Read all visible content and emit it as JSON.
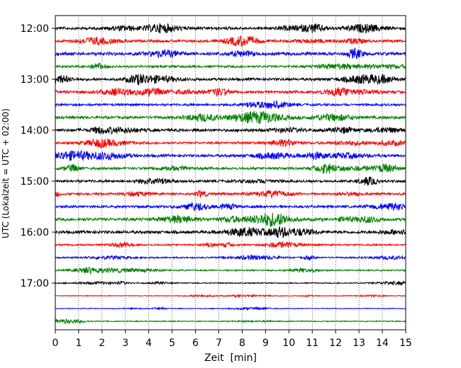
{
  "chart_data": {
    "type": "line",
    "xlabel": "Zeit  [min]",
    "ylabel": "UTC (Lokalzeit = UTC + 02:00)",
    "xlim": [
      0,
      15
    ],
    "x_ticks": [
      0,
      1,
      2,
      3,
      4,
      5,
      6,
      7,
      8,
      9,
      10,
      11,
      12,
      13,
      14,
      15
    ],
    "x_tick_labels": [
      "0",
      "1",
      "2",
      "3",
      "4",
      "5",
      "6",
      "7",
      "8",
      "9",
      "10",
      "11",
      "12",
      "13",
      "14",
      "15"
    ],
    "y_tick_labels": [
      "12:00",
      "13:00",
      "14:00",
      "15:00",
      "16:00",
      "17:00"
    ],
    "grid": "vertical-dotted",
    "trace_colors": [
      "#000000",
      "#ff0000",
      "#0000ff",
      "#008000"
    ],
    "traces": [
      {
        "start": "12:00",
        "color": "#000000",
        "amplitude": 0.55
      },
      {
        "start": "12:15",
        "color": "#ff0000",
        "amplitude": 0.5
      },
      {
        "start": "12:30",
        "color": "#0000ff",
        "amplitude": 0.65
      },
      {
        "start": "12:45",
        "color": "#008000",
        "amplitude": 0.45
      },
      {
        "start": "13:00",
        "color": "#000000",
        "amplitude": 0.55
      },
      {
        "start": "13:15",
        "color": "#ff0000",
        "amplitude": 0.5
      },
      {
        "start": "13:30",
        "color": "#0000ff",
        "amplitude": 0.45
      },
      {
        "start": "13:45",
        "color": "#008000",
        "amplitude": 0.55
      },
      {
        "start": "14:00",
        "color": "#000000",
        "amplitude": 0.6
      },
      {
        "start": "14:15",
        "color": "#ff0000",
        "amplitude": 0.45
      },
      {
        "start": "14:30",
        "color": "#0000ff",
        "amplitude": 0.55
      },
      {
        "start": "14:45",
        "color": "#008000",
        "amplitude": 0.5
      },
      {
        "start": "15:00",
        "color": "#000000",
        "amplitude": 0.5
      },
      {
        "start": "15:15",
        "color": "#ff0000",
        "amplitude": 0.45
      },
      {
        "start": "15:30",
        "color": "#0000ff",
        "amplitude": 0.5
      },
      {
        "start": "15:45",
        "color": "#008000",
        "amplitude": 0.6
      },
      {
        "start": "16:00",
        "color": "#000000",
        "amplitude": 0.6
      },
      {
        "start": "16:15",
        "color": "#ff0000",
        "amplitude": 0.35
      },
      {
        "start": "16:30",
        "color": "#0000ff",
        "amplitude": 0.3
      },
      {
        "start": "16:45",
        "color": "#008000",
        "amplitude": 0.3
      },
      {
        "start": "17:00",
        "color": "#000000",
        "amplitude": 0.2
      },
      {
        "start": "17:15",
        "color": "#ff0000",
        "amplitude": 0.15
      },
      {
        "start": "17:30",
        "color": "#0000ff",
        "amplitude": 0.15
      },
      {
        "start": "17:45",
        "color": "#008000",
        "amplitude": 0.2
      }
    ]
  }
}
